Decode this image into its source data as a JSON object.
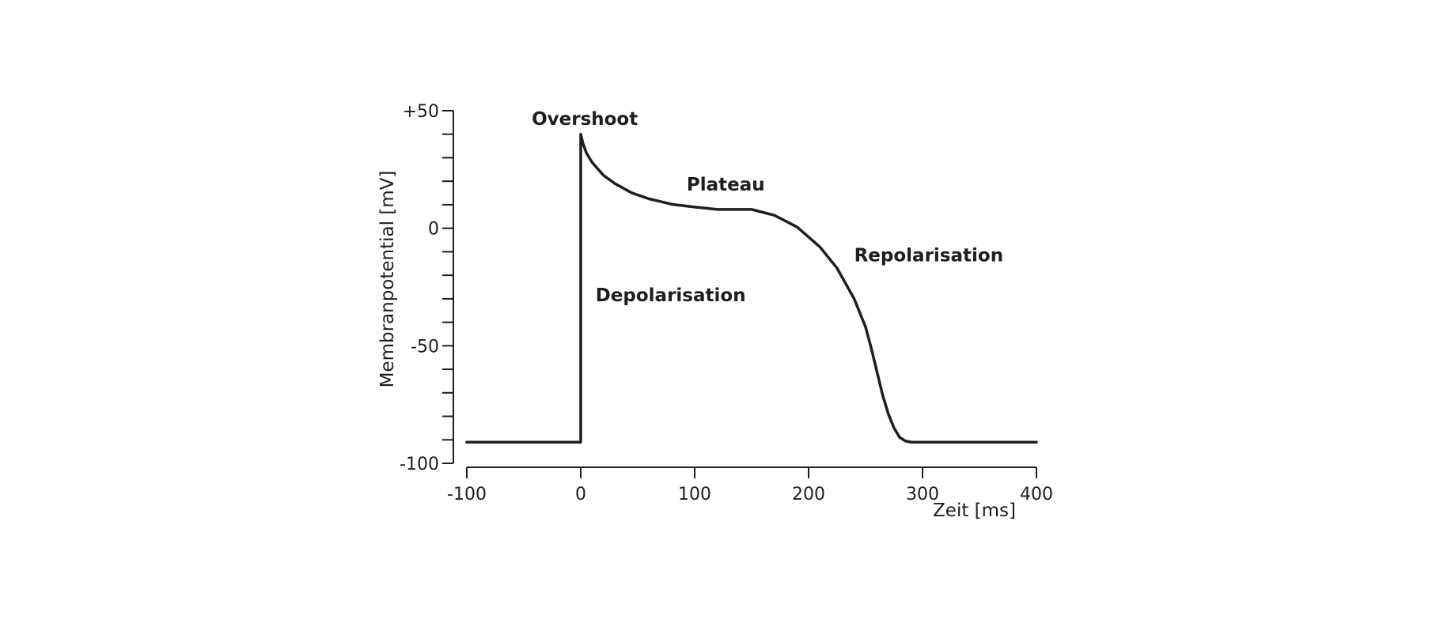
{
  "chart_data": {
    "type": "line",
    "title": "",
    "xlabel": "Zeit [ms]",
    "ylabel": "Membranpotential [mV]",
    "xlim": [
      -100,
      400
    ],
    "ylim": [
      -100,
      50
    ],
    "x_ticks": [
      -100,
      0,
      100,
      200,
      300,
      400
    ],
    "x_tick_labels": [
      "-100",
      "0",
      "100",
      "200",
      "300",
      "400"
    ],
    "y_major_ticks": [
      -100,
      -50,
      0,
      50
    ],
    "y_tick_labels": [
      "-100",
      "-50",
      "0",
      "+50"
    ],
    "y_minor_step": 10,
    "grid": false,
    "line_color": "#1e1e1e",
    "series": [
      {
        "x": [
          -100,
          0,
          0,
          2,
          5,
          10,
          20,
          30,
          45,
          60,
          80,
          100,
          120,
          135,
          150,
          170,
          190,
          210,
          225,
          240,
          250,
          255,
          260,
          265,
          270,
          275,
          280,
          285,
          290,
          300,
          350,
          400
        ],
        "y": [
          -91,
          -91,
          40,
          36,
          32,
          28,
          22.5,
          19,
          15,
          12.5,
          10.2,
          9,
          8,
          8,
          8,
          5.5,
          0.5,
          -8,
          -17,
          -30,
          -42,
          -51,
          -61,
          -71,
          -79,
          -85,
          -89,
          -90.5,
          -91,
          -91,
          -91,
          -91
        ]
      }
    ],
    "annotations": [
      {
        "text": "Overshoot",
        "x": -43,
        "y": 44
      },
      {
        "text": "Plateau",
        "x": 93,
        "y": 16
      },
      {
        "text": "Depolarisation",
        "x": 13,
        "y": -31
      },
      {
        "text": "Repolarisation",
        "x": 240,
        "y": -14
      }
    ]
  }
}
